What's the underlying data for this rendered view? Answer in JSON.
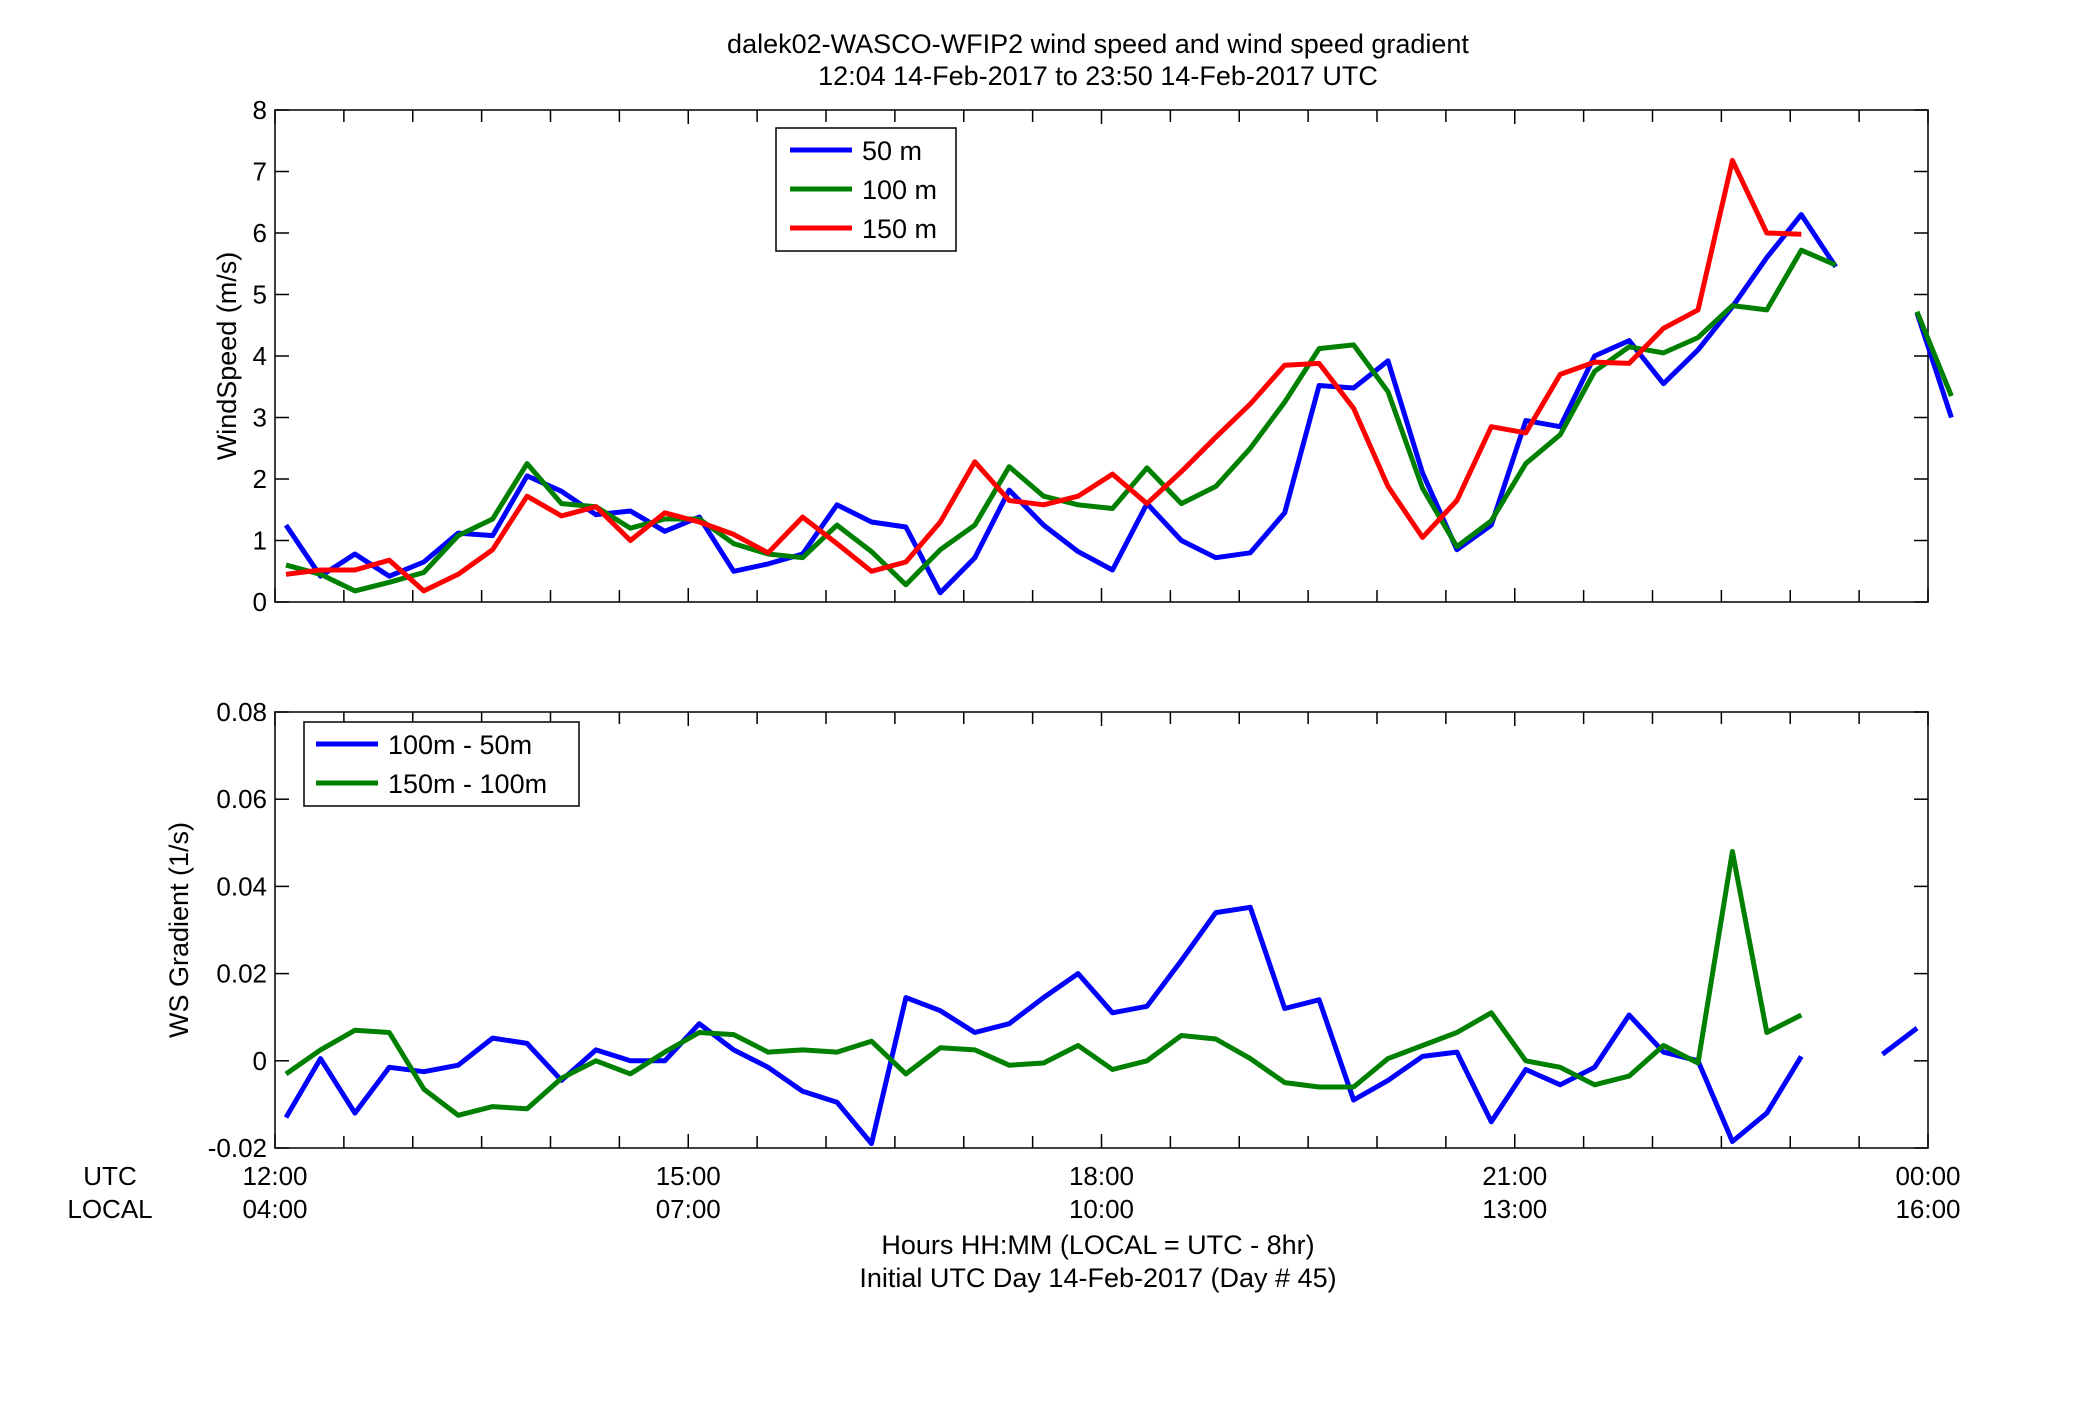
{
  "title_line1": "dalek02-WASCO-WFIP2  wind speed and wind speed gradient",
  "title_line2": "12:04 14-Feb-2017 to 23:50 14-Feb-2017  UTC",
  "xaxis": {
    "row_label_utc": "UTC",
    "row_label_local": "LOCAL",
    "xlabel_line1": "Hours HH:MM  (LOCAL = UTC - 8hr)",
    "xlabel_line2": "Initial UTC Day 14-Feb-2017 (Day # 45)",
    "utc_ticks": [
      "12:00",
      "15:00",
      "18:00",
      "21:00",
      "00:00"
    ],
    "local_ticks": [
      "04:00",
      "07:00",
      "10:00",
      "13:00",
      "16:00"
    ]
  },
  "colors": {
    "blue": "#0000ff",
    "green": "#008000",
    "red": "#ff0000"
  },
  "chart_data": [
    {
      "type": "line",
      "ylabel": "WindSpeed (m/s)",
      "xlim": [
        12,
        24
      ],
      "ylim": [
        0,
        8
      ],
      "yticks": [
        "0",
        "1",
        "2",
        "3",
        "4",
        "5",
        "6",
        "7",
        "8"
      ],
      "legend_position": "top-center",
      "series": [
        {
          "name": "50 m",
          "color": "#0000ff",
          "points": [
            [
              12.08,
              1.25
            ],
            [
              12.33,
              0.42
            ],
            [
              12.58,
              0.78
            ],
            [
              12.83,
              0.42
            ],
            [
              13.08,
              0.65
            ],
            [
              13.33,
              1.12
            ],
            [
              13.58,
              1.08
            ],
            [
              13.83,
              2.05
            ],
            [
              14.08,
              1.8
            ],
            [
              14.33,
              1.42
            ],
            [
              14.58,
              1.48
            ],
            [
              14.83,
              1.15
            ],
            [
              15.08,
              1.38
            ],
            [
              15.33,
              0.5
            ],
            [
              15.58,
              0.62
            ],
            [
              15.83,
              0.78
            ],
            [
              16.08,
              1.58
            ],
            [
              16.33,
              1.3
            ],
            [
              16.58,
              1.22
            ],
            [
              16.83,
              0.15
            ],
            [
              17.08,
              0.72
            ],
            [
              17.33,
              1.82
            ],
            [
              17.58,
              1.25
            ],
            [
              17.83,
              0.82
            ],
            [
              18.08,
              0.52
            ],
            [
              18.33,
              1.6
            ],
            [
              18.58,
              1.0
            ],
            [
              18.83,
              0.72
            ],
            [
              19.08,
              0.8
            ],
            [
              19.33,
              1.45
            ],
            [
              19.58,
              3.52
            ],
            [
              19.83,
              3.48
            ],
            [
              20.08,
              3.92
            ],
            [
              20.33,
              2.1
            ],
            [
              20.58,
              0.85
            ],
            [
              20.83,
              1.25
            ],
            [
              21.08,
              2.95
            ],
            [
              21.33,
              2.85
            ],
            [
              21.58,
              4.0
            ],
            [
              21.83,
              4.25
            ],
            [
              22.08,
              3.55
            ],
            [
              22.33,
              4.1
            ],
            [
              22.58,
              4.8
            ],
            [
              22.83,
              5.6
            ],
            [
              23.08,
              6.3
            ],
            [
              23.33,
              5.45
            ],
            null,
            [
              23.92,
              4.7
            ],
            [
              24.17,
              3.0
            ]
          ]
        },
        {
          "name": "100 m",
          "color": "#008000",
          "points": [
            [
              12.08,
              0.6
            ],
            [
              12.33,
              0.45
            ],
            [
              12.58,
              0.18
            ],
            [
              12.83,
              0.32
            ],
            [
              13.08,
              0.48
            ],
            [
              13.33,
              1.08
            ],
            [
              13.58,
              1.35
            ],
            [
              13.83,
              2.25
            ],
            [
              14.08,
              1.6
            ],
            [
              14.33,
              1.55
            ],
            [
              14.58,
              1.2
            ],
            [
              14.83,
              1.35
            ],
            [
              15.08,
              1.35
            ],
            [
              15.33,
              0.95
            ],
            [
              15.58,
              0.78
            ],
            [
              15.83,
              0.72
            ],
            [
              16.08,
              1.25
            ],
            [
              16.33,
              0.82
            ],
            [
              16.58,
              0.28
            ],
            [
              16.83,
              0.85
            ],
            [
              17.08,
              1.25
            ],
            [
              17.33,
              2.2
            ],
            [
              17.58,
              1.72
            ],
            [
              17.83,
              1.58
            ],
            [
              18.08,
              1.52
            ],
            [
              18.33,
              2.18
            ],
            [
              18.58,
              1.6
            ],
            [
              18.83,
              1.88
            ],
            [
              19.08,
              2.5
            ],
            [
              19.33,
              3.25
            ],
            [
              19.58,
              4.12
            ],
            [
              19.83,
              4.18
            ],
            [
              20.08,
              3.42
            ],
            [
              20.33,
              1.85
            ],
            [
              20.58,
              0.9
            ],
            [
              20.83,
              1.32
            ],
            [
              21.08,
              2.25
            ],
            [
              21.33,
              2.72
            ],
            [
              21.58,
              3.75
            ],
            [
              21.83,
              4.15
            ],
            [
              22.08,
              4.05
            ],
            [
              22.33,
              4.3
            ],
            [
              22.58,
              4.82
            ],
            [
              22.83,
              4.75
            ],
            [
              23.08,
              5.72
            ],
            [
              23.33,
              5.48
            ],
            null,
            [
              23.92,
              4.72
            ],
            [
              24.17,
              3.35
            ]
          ]
        },
        {
          "name": "150 m",
          "color": "#ff0000",
          "points": [
            [
              12.08,
              0.45
            ],
            [
              12.33,
              0.52
            ],
            [
              12.58,
              0.52
            ],
            [
              12.83,
              0.68
            ],
            [
              13.08,
              0.18
            ],
            [
              13.33,
              0.45
            ],
            [
              13.58,
              0.85
            ],
            [
              13.83,
              1.72
            ],
            [
              14.08,
              1.4
            ],
            [
              14.33,
              1.55
            ],
            [
              14.58,
              1.0
            ],
            [
              14.83,
              1.45
            ],
            [
              15.08,
              1.3
            ],
            [
              15.33,
              1.1
            ],
            [
              15.58,
              0.8
            ],
            [
              15.83,
              1.38
            ],
            [
              16.08,
              0.95
            ],
            [
              16.33,
              0.5
            ],
            [
              16.58,
              0.65
            ],
            [
              16.83,
              1.3
            ],
            [
              17.08,
              2.28
            ],
            [
              17.33,
              1.65
            ],
            [
              17.58,
              1.58
            ],
            [
              17.83,
              1.72
            ],
            [
              18.08,
              2.08
            ],
            [
              18.33,
              1.6
            ],
            [
              18.58,
              2.12
            ],
            [
              18.83,
              2.68
            ],
            [
              19.08,
              3.22
            ],
            [
              19.33,
              3.85
            ],
            [
              19.58,
              3.88
            ],
            [
              19.83,
              3.15
            ],
            [
              20.08,
              1.88
            ],
            [
              20.33,
              1.05
            ],
            [
              20.58,
              1.65
            ],
            [
              20.83,
              2.85
            ],
            [
              21.08,
              2.75
            ],
            [
              21.33,
              3.7
            ],
            [
              21.58,
              3.9
            ],
            [
              21.83,
              3.88
            ],
            [
              22.08,
              4.45
            ],
            [
              22.33,
              4.75
            ],
            [
              22.58,
              7.18
            ],
            [
              22.83,
              6.0
            ],
            [
              23.08,
              5.98
            ]
          ]
        }
      ]
    },
    {
      "type": "line",
      "ylabel": "WS Gradient (1/s)",
      "xlim": [
        12,
        24
      ],
      "ylim": [
        -0.02,
        0.08
      ],
      "yticks": [
        "-0.02",
        "0",
        "0.02",
        "0.04",
        "0.06",
        "0.08"
      ],
      "legend_position": "top-left",
      "series": [
        {
          "name": "100m - 50m",
          "color": "#0000ff",
          "points": [
            [
              12.08,
              -0.013
            ],
            [
              12.33,
              0.0005
            ],
            [
              12.58,
              -0.012
            ],
            [
              12.83,
              -0.0015
            ],
            [
              13.08,
              -0.0025
            ],
            [
              13.33,
              -0.001
            ],
            [
              13.58,
              0.0052
            ],
            [
              13.83,
              0.004
            ],
            [
              14.08,
              -0.0045
            ],
            [
              14.33,
              0.0025
            ],
            [
              14.58,
              0.0
            ],
            [
              14.83,
              0.0
            ],
            [
              15.08,
              0.0085
            ],
            [
              15.33,
              0.0025
            ],
            [
              15.58,
              -0.0015
            ],
            [
              15.83,
              -0.007
            ],
            [
              16.08,
              -0.0095
            ],
            [
              16.33,
              -0.019
            ],
            [
              16.58,
              0.0145
            ],
            [
              16.83,
              0.0115
            ],
            [
              17.08,
              0.0065
            ],
            [
              17.33,
              0.0085
            ],
            [
              17.58,
              0.0145
            ],
            [
              17.83,
              0.02
            ],
            [
              18.08,
              0.011
            ],
            [
              18.33,
              0.0125
            ],
            [
              18.58,
              0.023
            ],
            [
              18.83,
              0.034
            ],
            [
              19.08,
              0.0352
            ],
            [
              19.33,
              0.012
            ],
            [
              19.58,
              0.014
            ],
            [
              19.83,
              -0.009
            ],
            [
              20.08,
              -0.0045
            ],
            [
              20.33,
              0.001
            ],
            [
              20.58,
              0.002
            ],
            [
              20.83,
              -0.014
            ],
            [
              21.08,
              -0.002
            ],
            [
              21.33,
              -0.0055
            ],
            [
              21.58,
              -0.0015
            ],
            [
              21.83,
              0.0105
            ],
            [
              22.08,
              0.002
            ],
            [
              22.33,
              0.0
            ],
            [
              22.58,
              -0.0185
            ],
            [
              22.83,
              -0.012
            ],
            [
              23.08,
              0.001
            ],
            null,
            [
              23.67,
              0.0015
            ],
            [
              23.92,
              0.0075
            ]
          ]
        },
        {
          "name": "150m - 100m",
          "color": "#008000",
          "points": [
            [
              12.08,
              -0.003
            ],
            [
              12.33,
              0.0025
            ],
            [
              12.58,
              0.007
            ],
            [
              12.83,
              0.0065
            ],
            [
              13.08,
              -0.0065
            ],
            [
              13.33,
              -0.0125
            ],
            [
              13.58,
              -0.0105
            ],
            [
              13.83,
              -0.011
            ],
            [
              14.08,
              -0.004
            ],
            [
              14.33,
              0.0
            ],
            [
              14.58,
              -0.003
            ],
            [
              14.83,
              0.002
            ],
            [
              15.08,
              0.0065
            ],
            [
              15.33,
              0.006
            ],
            [
              15.58,
              0.002
            ],
            [
              15.83,
              0.0025
            ],
            [
              16.08,
              0.002
            ],
            [
              16.33,
              0.0045
            ],
            [
              16.58,
              -0.003
            ],
            [
              16.83,
              0.003
            ],
            [
              17.08,
              0.0025
            ],
            [
              17.33,
              -0.001
            ],
            [
              17.58,
              -0.0005
            ],
            [
              17.83,
              0.0035
            ],
            [
              18.08,
              -0.002
            ],
            [
              18.33,
              0.0
            ],
            [
              18.58,
              0.0058
            ],
            [
              18.83,
              0.005
            ],
            [
              19.08,
              0.0005
            ],
            [
              19.33,
              -0.005
            ],
            [
              19.58,
              -0.006
            ],
            [
              19.83,
              -0.006
            ],
            [
              20.08,
              0.0005
            ],
            [
              20.33,
              0.0035
            ],
            [
              20.58,
              0.0065
            ],
            [
              20.83,
              0.011
            ],
            [
              21.08,
              0.0
            ],
            [
              21.33,
              -0.0015
            ],
            [
              21.58,
              -0.0055
            ],
            [
              21.83,
              -0.0035
            ],
            [
              22.08,
              0.0035
            ],
            [
              22.33,
              -0.0005
            ],
            [
              22.58,
              0.048
            ],
            [
              22.83,
              0.0065
            ],
            [
              23.08,
              0.0105
            ]
          ]
        }
      ]
    }
  ]
}
